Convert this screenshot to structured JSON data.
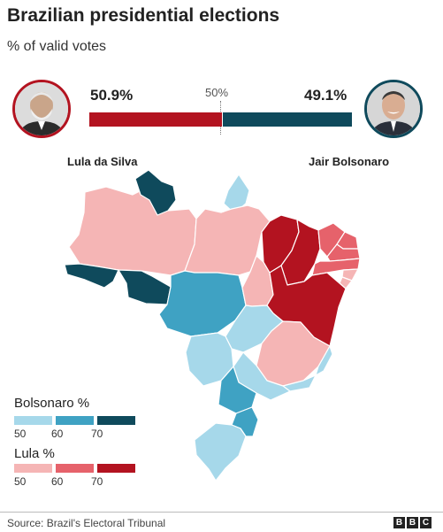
{
  "header": {
    "title": "Brazilian presidential elections",
    "subtitle": "% of valid votes"
  },
  "candidates": {
    "lula": {
      "name": "Lula da Silva",
      "percent_label": "50.9%",
      "percent": 50.9,
      "color": "#b31320"
    },
    "bolsonaro": {
      "name": "Jair Bolsonaro",
      "percent_label": "49.1%",
      "percent": 49.1,
      "color": "#0f4a5c"
    }
  },
  "midpoint_label": "50%",
  "legend": {
    "bolsonaro": {
      "title": "Bolsonaro %",
      "ticks": [
        "50",
        "60",
        "70"
      ],
      "colors": [
        "#a6d8ea",
        "#3fa2c3",
        "#0f4a5c"
      ]
    },
    "lula": {
      "title": "Lula %",
      "ticks": [
        "50",
        "60",
        "70"
      ],
      "colors": [
        "#f5b5b5",
        "#e6626b",
        "#b31320"
      ]
    }
  },
  "footer": {
    "source": "Source: Brazil's Electoral Tribunal",
    "logo_letters": [
      "B",
      "B",
      "C"
    ]
  }
}
